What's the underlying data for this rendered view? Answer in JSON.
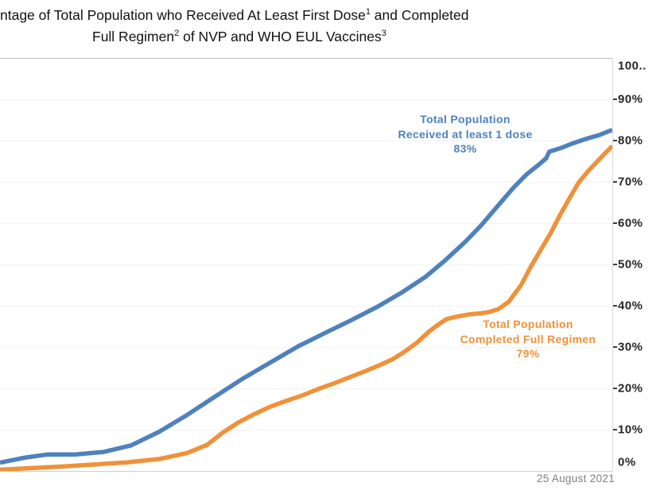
{
  "title": {
    "line1_pre": "ntage of Total Population who Received At Least First Dose",
    "line1_sup": "1",
    "line1_post": " and Completed",
    "line2_pre": "Full Regimen",
    "line2_sup": "2",
    "line2_post": "  of NVP and WHO EUL Vaccines",
    "line3_sup": "3"
  },
  "footer": {
    "date_label": "25 August 2021"
  },
  "colors": {
    "series_first_dose": "#4f81bd",
    "series_full_regimen": "#f0913a",
    "grid_top_border": "#bfbfbf",
    "grid_bottom_border": "#cfcfcf",
    "gridline": "#f2f2f2",
    "axis_line": "#d9d9d9",
    "tick_text": "#262626",
    "date_text": "#7f7f7f"
  },
  "chart_data": {
    "type": "line",
    "title": "ntage of Total Population who Received At Least First Dose(1) and Completed Full Regimen(2) of NVP and WHO EUL Vaccines(3)",
    "grid": "horizontal",
    "legend_position": "inline-annotations",
    "x_axis": {
      "tick_labels_visible": false,
      "last_date_label": "25 August 2021",
      "x_unit": "fraction_of_plot_width_0_to_1"
    },
    "y_axis": {
      "side": "right",
      "range": [
        0,
        100
      ],
      "unit": "%",
      "ticks": [
        {
          "label": "100..",
          "value": 100
        },
        {
          "label": "90%",
          "value": 90
        },
        {
          "label": "80%",
          "value": 80
        },
        {
          "label": "70%",
          "value": 70
        },
        {
          "label": "60%",
          "value": 60
        },
        {
          "label": "50%",
          "value": 50
        },
        {
          "label": "40%",
          "value": 40
        },
        {
          "label": "30%",
          "value": 30
        },
        {
          "label": "20%",
          "value": 20
        },
        {
          "label": "10%",
          "value": 10
        },
        {
          "label": "0%",
          "value": 0
        }
      ]
    },
    "series": [
      {
        "name": "Total Population Received at least 1 dose",
        "final_value_pct": 83,
        "color": "#4f81bd",
        "annotation": {
          "lines": [
            "Total Population",
            "Received at least 1 dose",
            "83%"
          ]
        },
        "points": [
          [
            0.0,
            2.0
          ],
          [
            0.039,
            3.2
          ],
          [
            0.078,
            4.0
          ],
          [
            0.123,
            4.0
          ],
          [
            0.169,
            4.6
          ],
          [
            0.214,
            6.2
          ],
          [
            0.26,
            9.5
          ],
          [
            0.305,
            13.5
          ],
          [
            0.351,
            18.0
          ],
          [
            0.396,
            22.3
          ],
          [
            0.442,
            26.3
          ],
          [
            0.487,
            30.2
          ],
          [
            0.532,
            33.5
          ],
          [
            0.571,
            36.3
          ],
          [
            0.617,
            39.8
          ],
          [
            0.656,
            43.2
          ],
          [
            0.695,
            47.0
          ],
          [
            0.727,
            51.0
          ],
          [
            0.76,
            55.5
          ],
          [
            0.786,
            59.5
          ],
          [
            0.812,
            64.0
          ],
          [
            0.838,
            68.5
          ],
          [
            0.86,
            71.8
          ],
          [
            0.881,
            74.3
          ],
          [
            0.892,
            75.7
          ],
          [
            0.897,
            77.3
          ],
          [
            0.916,
            78.2
          ],
          [
            0.935,
            79.3
          ],
          [
            0.957,
            80.4
          ],
          [
            0.978,
            81.3
          ],
          [
            1.0,
            82.6
          ]
        ]
      },
      {
        "name": "Total Population Completed Full Regimen",
        "final_value_pct": 79,
        "color": "#f0913a",
        "annotation": {
          "lines": [
            "Total Population",
            "Completed Full Regimen",
            "79%"
          ]
        },
        "points": [
          [
            0.0,
            0.3
          ],
          [
            0.052,
            0.7
          ],
          [
            0.104,
            1.1
          ],
          [
            0.156,
            1.6
          ],
          [
            0.208,
            2.1
          ],
          [
            0.26,
            2.9
          ],
          [
            0.305,
            4.3
          ],
          [
            0.338,
            6.3
          ],
          [
            0.364,
            9.3
          ],
          [
            0.39,
            11.8
          ],
          [
            0.416,
            13.8
          ],
          [
            0.442,
            15.6
          ],
          [
            0.468,
            17.0
          ],
          [
            0.494,
            18.3
          ],
          [
            0.519,
            19.8
          ],
          [
            0.545,
            21.2
          ],
          [
            0.571,
            22.7
          ],
          [
            0.597,
            24.2
          ],
          [
            0.623,
            25.8
          ],
          [
            0.643,
            27.2
          ],
          [
            0.662,
            29.0
          ],
          [
            0.682,
            31.2
          ],
          [
            0.701,
            33.8
          ],
          [
            0.717,
            35.6
          ],
          [
            0.73,
            36.8
          ],
          [
            0.747,
            37.4
          ],
          [
            0.766,
            37.9
          ],
          [
            0.786,
            38.2
          ],
          [
            0.799,
            38.5
          ],
          [
            0.814,
            39.2
          ],
          [
            0.831,
            41.0
          ],
          [
            0.851,
            45.0
          ],
          [
            0.867,
            49.5
          ],
          [
            0.883,
            53.5
          ],
          [
            0.899,
            57.5
          ],
          [
            0.914,
            61.8
          ],
          [
            0.93,
            66.0
          ],
          [
            0.945,
            69.8
          ],
          [
            0.961,
            72.7
          ],
          [
            0.977,
            75.2
          ],
          [
            0.988,
            76.9
          ],
          [
            1.0,
            78.7
          ]
        ]
      }
    ]
  }
}
